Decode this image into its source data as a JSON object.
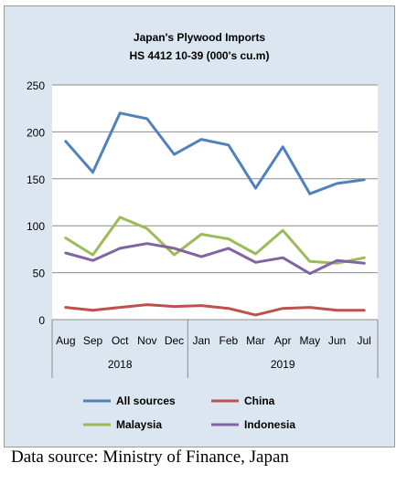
{
  "chart_data": {
    "type": "line",
    "title": "Japan's Plywood Imports",
    "subtitle": "HS 4412 10-39  (000's cu.m)",
    "xlabel": "",
    "ylabel": "",
    "ylim": [
      0,
      250
    ],
    "yticks": [
      0,
      50,
      100,
      150,
      200,
      250
    ],
    "grid": true,
    "legend_position": "bottom",
    "categories": [
      "Aug",
      "Sep",
      "Oct",
      "Nov",
      "Dec",
      "Jan",
      "Feb",
      "Mar",
      "Apr",
      "May",
      "Jun",
      "Jul"
    ],
    "year_groups": [
      {
        "label": "2018",
        "count": 5
      },
      {
        "label": "2019",
        "count": 7
      }
    ],
    "series": [
      {
        "name": "All sources",
        "color": "#4f81bd",
        "values": [
          190,
          157,
          220,
          214,
          176,
          192,
          186,
          140,
          184,
          134,
          145,
          149
        ]
      },
      {
        "name": "China",
        "color": "#c0504d",
        "values": [
          13,
          10,
          13,
          16,
          14,
          15,
          12,
          5,
          12,
          13,
          10,
          10
        ]
      },
      {
        "name": "Malaysia",
        "color": "#9bbb59",
        "values": [
          87,
          69,
          109,
          97,
          69,
          91,
          86,
          70,
          95,
          62,
          60,
          66
        ]
      },
      {
        "name": "Indonesia",
        "color": "#8064a2",
        "values": [
          71,
          63,
          76,
          81,
          76,
          67,
          76,
          61,
          66,
          49,
          63,
          60
        ]
      }
    ]
  },
  "source_note": "Data source: Ministry of Finance, Japan"
}
